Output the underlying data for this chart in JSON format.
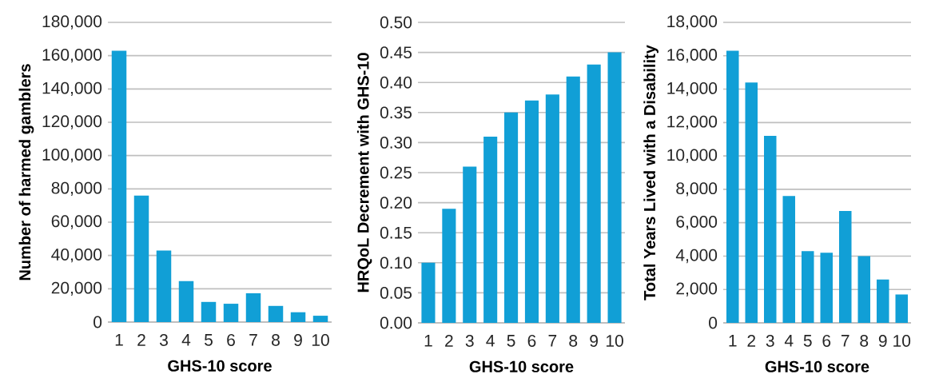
{
  "chart_data": [
    {
      "type": "bar",
      "xlabel": "GHS-10 score",
      "ylabel": "Number of harmed gamblers",
      "categories": [
        "1",
        "2",
        "3",
        "4",
        "5",
        "6",
        "7",
        "8",
        "9",
        "10"
      ],
      "values": [
        163000,
        76000,
        43000,
        24600,
        12100,
        11000,
        17300,
        9700,
        5900,
        3800
      ],
      "color": "#119fd6",
      "ylim": [
        0,
        180000
      ],
      "yticks": [
        0,
        {
          "value": 20000,
          "label": "20,000"
        },
        {
          "value": 40000,
          "label": "40,000"
        },
        {
          "value": 60000,
          "label": "60,000"
        },
        {
          "value": 80000,
          "label": "80,000"
        },
        {
          "value": 100000,
          "label": "100,000"
        },
        {
          "value": 120000,
          "label": "120,000"
        },
        {
          "value": 140000,
          "label": "140,000"
        },
        {
          "value": 160000,
          "label": "160,000"
        },
        {
          "value": 180000,
          "label": "180,000"
        }
      ],
      "grid": "y"
    },
    {
      "type": "bar",
      "xlabel": "GHS-10 score",
      "ylabel": "HRQoL Decrement with GHS-10",
      "categories": [
        "1",
        "2",
        "3",
        "4",
        "5",
        "6",
        "7",
        "8",
        "9",
        "10"
      ],
      "values": [
        0.1,
        0.19,
        0.26,
        0.31,
        0.35,
        0.37,
        0.38,
        0.41,
        0.43,
        0.45
      ],
      "color": "#119fd6",
      "ylim": [
        0,
        0.5
      ],
      "yticks": [
        {
          "value": 0,
          "label": "0.00"
        },
        0.05,
        {
          "value": 0.1,
          "label": "0.10"
        },
        0.15,
        {
          "value": 0.2,
          "label": "0.20"
        },
        0.25,
        {
          "value": 0.3,
          "label": "0.30"
        },
        0.35,
        {
          "value": 0.4,
          "label": "0.40"
        },
        0.45,
        {
          "value": 0.5,
          "label": "0.50"
        }
      ],
      "grid": "y"
    },
    {
      "type": "bar",
      "xlabel": "GHS-10 score",
      "ylabel": "Total Years Lived with a Disability",
      "categories": [
        "1",
        "2",
        "3",
        "4",
        "5",
        "6",
        "7",
        "8",
        "9",
        "10"
      ],
      "values": [
        16300,
        14400,
        11200,
        7600,
        4300,
        4200,
        6700,
        4000,
        2600,
        1700
      ],
      "color": "#119fd6",
      "ylim": [
        0,
        18000
      ],
      "yticks": [
        0,
        {
          "value": 2000,
          "label": "2,000"
        },
        {
          "value": 4000,
          "label": "4,000"
        },
        {
          "value": 6000,
          "label": "6,000"
        },
        {
          "value": 8000,
          "label": "8,000"
        },
        {
          "value": 10000,
          "label": "10,000"
        },
        {
          "value": 12000,
          "label": "12,000"
        },
        {
          "value": 14000,
          "label": "14,000"
        },
        {
          "value": 16000,
          "label": "16,000"
        },
        {
          "value": 18000,
          "label": "18,000"
        }
      ],
      "grid": "y"
    }
  ]
}
